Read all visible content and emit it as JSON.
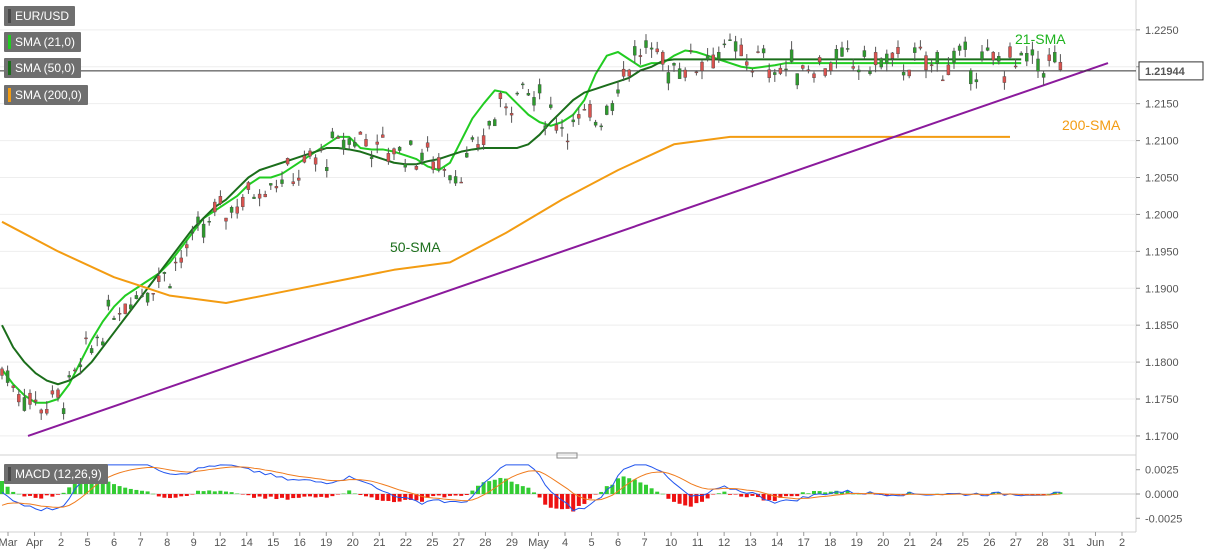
{
  "chart_data": [
    {
      "type": "candlestick",
      "symbol": "EUR/USD",
      "last_price": "1.21944",
      "ylim": [
        1.1685,
        1.2285
      ],
      "y_ticks": [
        "1.2250",
        "1.2200",
        "1.2150",
        "1.2100",
        "1.2050",
        "1.2000",
        "1.1950",
        "1.1900",
        "1.1850",
        "1.1800",
        "1.1750",
        "1.1700"
      ],
      "x_ticks": [
        "Mar",
        "Apr",
        "2",
        "5",
        "6",
        "7",
        "8",
        "9",
        "12",
        "14",
        "15",
        "16",
        "19",
        "20",
        "21",
        "22",
        "25",
        "27",
        "28",
        "29",
        "May",
        "4",
        "5",
        "6",
        "7",
        "10",
        "11",
        "12",
        "13",
        "14",
        "17",
        "18",
        "19",
        "20",
        "21",
        "24",
        "25",
        "26",
        "27",
        "28",
        "31",
        "Jun",
        "2"
      ],
      "legend": [
        {
          "label": "EUR/USD",
          "color": "#4a4a4a"
        },
        {
          "label": "SMA (21,0)",
          "color": "#22cc22"
        },
        {
          "label": "SMA (50,0)",
          "color": "#1b6e1b"
        },
        {
          "label": "SMA (200,0)",
          "color": "#f39c12"
        }
      ],
      "annotations": [
        {
          "text": "21-SMA",
          "color": "#1db31d"
        },
        {
          "text": "50-SMA",
          "color": "#1b6e1b"
        },
        {
          "text": "200-SMA",
          "color": "#f39c12"
        }
      ],
      "series": [
        {
          "name": "SMA (21,0)",
          "color": "#22cc22",
          "x": [
            0,
            2,
            4,
            6,
            8,
            10,
            12,
            14,
            16,
            18,
            20,
            22,
            24,
            26,
            28,
            30,
            32,
            34,
            36,
            38,
            40,
            42,
            44,
            46,
            48,
            50,
            52,
            54,
            56,
            58,
            60,
            62,
            64,
            66,
            68,
            70,
            72,
            74,
            76,
            78,
            80,
            82,
            84,
            86,
            88,
            90,
            92,
            94,
            96,
            98,
            100,
            102,
            104,
            106,
            108,
            110,
            112,
            114,
            116,
            118,
            120,
            122,
            124,
            126,
            128,
            130,
            132,
            134,
            136,
            138,
            140,
            142,
            144,
            146,
            148,
            150,
            152,
            154,
            156,
            158,
            160,
            162,
            164,
            166,
            168,
            170,
            172,
            174,
            176,
            178,
            180,
            182
          ],
          "values": [
            1.179,
            1.177,
            1.1755,
            1.1745,
            1.1745,
            1.175,
            1.177,
            1.18,
            1.183,
            1.1855,
            1.1875,
            1.189,
            1.19,
            1.191,
            1.192,
            1.1935,
            1.1955,
            1.1975,
            1.1995,
            1.2005,
            1.2015,
            1.2025,
            1.204,
            1.205,
            1.205,
            1.2055,
            1.2065,
            1.2075,
            1.2085,
            1.2095,
            1.2105,
            1.2105,
            1.209,
            1.2088,
            1.2088,
            1.2085,
            1.208,
            1.2075,
            1.2065,
            1.206,
            1.207,
            1.21,
            1.213,
            1.215,
            1.2168,
            1.2165,
            1.215,
            1.2135,
            1.2125,
            1.212,
            1.2125,
            1.2135,
            1.2155,
            1.219,
            1.2215,
            1.222,
            1.221,
            1.22,
            1.2205,
            1.2205,
            1.2215,
            1.2222,
            1.222,
            1.2215,
            1.221,
            1.2205,
            1.22,
            1.2198,
            1.22,
            1.2202,
            1.2205,
            1.2205,
            1.2205,
            1.2205,
            1.2205,
            1.2205,
            1.2205,
            1.2205,
            1.2205,
            1.2205,
            1.2205,
            1.2205,
            1.2205,
            1.2205,
            1.2205,
            1.2205,
            1.2205,
            1.2205,
            1.2205,
            1.2205,
            1.2205,
            1.2205
          ]
        },
        {
          "name": "SMA (50,0)",
          "color": "#1b6e1b",
          "x": [
            0,
            2,
            4,
            6,
            8,
            10,
            12,
            14,
            16,
            18,
            20,
            22,
            24,
            26,
            28,
            30,
            32,
            34,
            36,
            38,
            40,
            42,
            44,
            46,
            48,
            50,
            52,
            54,
            56,
            58,
            60,
            62,
            64,
            66,
            68,
            70,
            72,
            74,
            76,
            78,
            80,
            82,
            84,
            86,
            88,
            90,
            92,
            94,
            96,
            98,
            100,
            102,
            104,
            106,
            108,
            110,
            112,
            114,
            116,
            118,
            120,
            122,
            124,
            126,
            128,
            130,
            132,
            134,
            136,
            138,
            140,
            142,
            144,
            146,
            148,
            150,
            152,
            154,
            156,
            158,
            160,
            162,
            164,
            166,
            168,
            170,
            172,
            174,
            176,
            178,
            180,
            182
          ],
          "values": [
            1.185,
            1.182,
            1.18,
            1.1785,
            1.1775,
            1.177,
            1.1775,
            1.1785,
            1.18,
            1.182,
            1.184,
            1.186,
            1.188,
            1.19,
            1.192,
            1.194,
            1.196,
            1.198,
            1.1995,
            1.201,
            1.202,
            1.2035,
            1.205,
            1.206,
            1.2065,
            1.207,
            1.2075,
            1.208,
            1.2085,
            1.209,
            1.209,
            1.2088,
            1.2085,
            1.208,
            1.2075,
            1.207,
            1.2068,
            1.2068,
            1.2072,
            1.2075,
            1.208,
            1.2085,
            1.2088,
            1.209,
            1.209,
            1.209,
            1.209,
            1.2095,
            1.2108,
            1.2125,
            1.214,
            1.2155,
            1.2165,
            1.217,
            1.2175,
            1.218,
            1.2185,
            1.2195,
            1.22,
            1.2208,
            1.221,
            1.221,
            1.221,
            1.221,
            1.221,
            1.221,
            1.221,
            1.221,
            1.221,
            1.221,
            1.221,
            1.221,
            1.221,
            1.221,
            1.221,
            1.221,
            1.221,
            1.221,
            1.221,
            1.221,
            1.221,
            1.221,
            1.221,
            1.221,
            1.221,
            1.221,
            1.221,
            1.221,
            1.221,
            1.221,
            1.221,
            1.221
          ]
        },
        {
          "name": "SMA (200,0)",
          "color": "#f39c12",
          "x": [
            0,
            10,
            20,
            30,
            40,
            50,
            60,
            70,
            80,
            90,
            100,
            110,
            120,
            130,
            140,
            150,
            160,
            170,
            180
          ],
          "values": [
            1.199,
            1.195,
            1.1915,
            1.189,
            1.188,
            1.1895,
            1.191,
            1.1925,
            1.1935,
            1.1975,
            1.202,
            1.206,
            1.2095,
            1.2105,
            1.2105,
            1.2105,
            1.2105,
            1.2105,
            1.2105
          ]
        },
        {
          "name": "Trend line",
          "color": "#8b1a9c",
          "x": [
            0,
            1
          ],
          "values": [
            1.17,
            1.2205
          ]
        }
      ]
    },
    {
      "type": "macd",
      "title": "MACD (12,26,9)",
      "ylim": [
        -0.0035,
        0.0035
      ],
      "y_ticks": [
        "0.0025",
        "0.0000",
        "-0.0025"
      ],
      "macd_color": "#2255ee",
      "signal_color": "#f07c1e",
      "hist_pos_color": "#33cc33",
      "hist_neg_color": "#ee1111"
    }
  ],
  "overlay": {
    "resize_handle": "drag-handle-icon"
  }
}
